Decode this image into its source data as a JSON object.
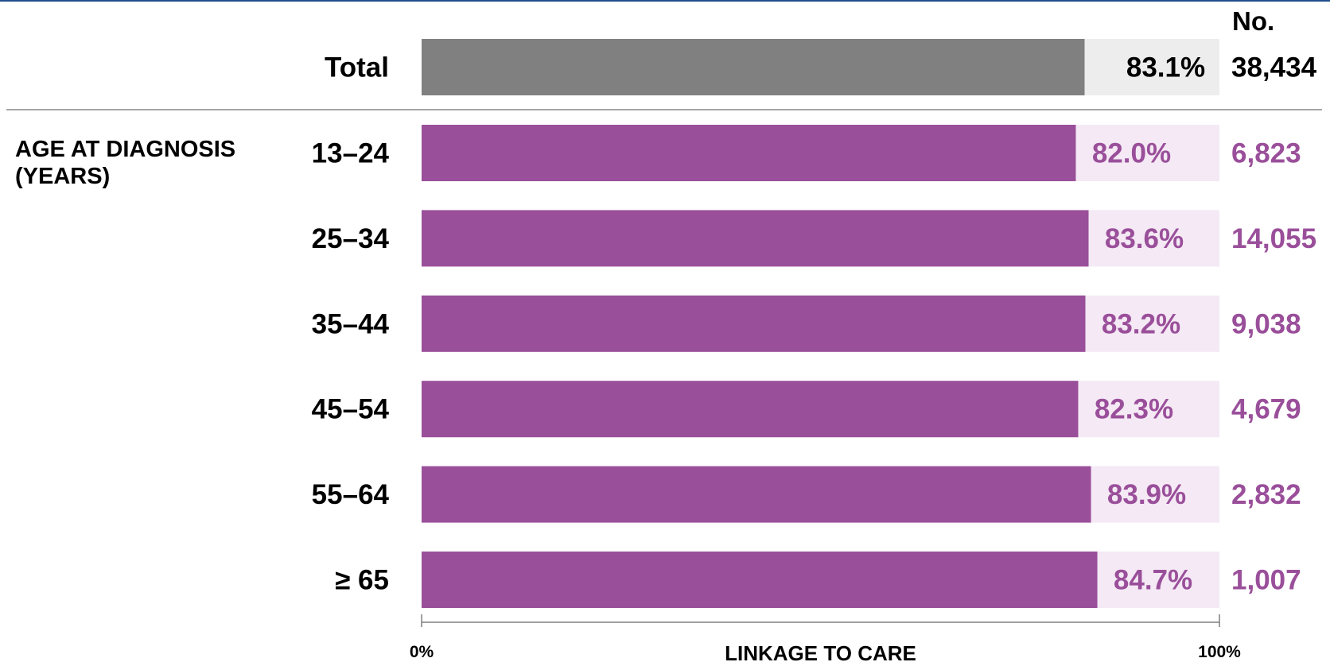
{
  "chart_data": {
    "type": "bar",
    "orientation": "horizontal",
    "group_label": "AGE AT DIAGNOSIS\n(YEARS)",
    "count_header": "No.",
    "xlabel": "LINKAGE TO CARE",
    "xlim": [
      0,
      100
    ],
    "x_ticks": [
      "0%",
      "100%"
    ],
    "total": {
      "category": "Total",
      "value": 83.1,
      "value_label": "83.1%",
      "count": "38,434"
    },
    "categories": [
      "13–24",
      "25–34",
      "35–44",
      "45–54",
      "55–64",
      "≥ 65"
    ],
    "values": [
      82.0,
      83.6,
      83.2,
      82.3,
      83.9,
      84.7
    ],
    "value_labels": [
      "82.0%",
      "83.6%",
      "83.2%",
      "82.3%",
      "83.9%",
      "84.7%"
    ],
    "counts": [
      "6,823",
      "14,055",
      "9,038",
      "4,679",
      "2,832",
      "1,007"
    ],
    "colors": {
      "total_bar": "#808080",
      "total_track": "#ededed",
      "total_text": "#000000",
      "group_bar": "#9a4f9a",
      "group_track": "#f4e9f4",
      "group_text": "#9a4f9a",
      "divider": "#a6a6a6",
      "axis": "#7f7f7f",
      "title_rule": "#1f4e8c"
    },
    "grid": false
  }
}
